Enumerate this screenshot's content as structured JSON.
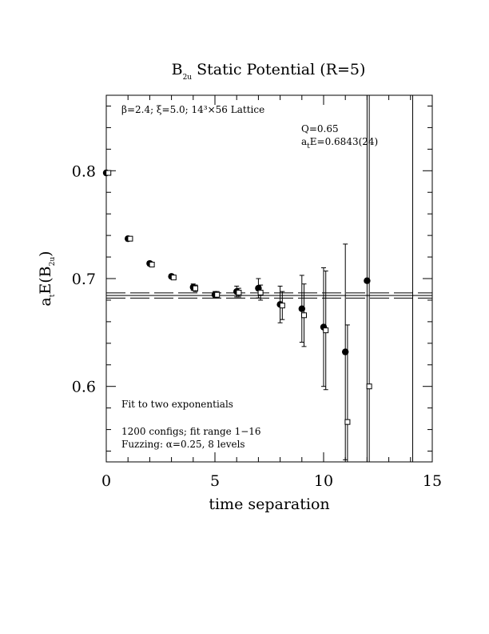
{
  "chart_data": {
    "type": "scatter",
    "title": "B",
    "title_sub": "2u",
    "title_rest": " Static Potential (R=5)",
    "xlabel": "time separation",
    "ylabel": {
      "a": "a",
      "a_sub": "t",
      "E": "E(B",
      "E_sub": "2u",
      "close": ")"
    },
    "xlim": [
      0,
      15
    ],
    "ylim": [
      0.53,
      0.87
    ],
    "x_ticks": [
      0,
      5,
      10,
      15
    ],
    "x_tick_labels": [
      "0",
      "5",
      "10",
      "15"
    ],
    "y_ticks": [
      0.6,
      0.7,
      0.8
    ],
    "y_tick_labels": [
      "0.6",
      "0.7",
      "0.8"
    ],
    "grid": false,
    "annotations": {
      "lattice": "β=2.4; ξ=5.0; 14³×56 Lattice",
      "q": "Q=0.65",
      "fit_a": "a",
      "fit_sub": "t",
      "fit_rest": "E=0.6843(24)",
      "fit_type": "Fit to two exponentials",
      "configs": "1200 configs; fit range 1−16",
      "fuzzing": "Fuzzing: α=0.25, 8 levels"
    },
    "fit": {
      "value": 0.6843,
      "error": 0.0024,
      "x_range": [
        0,
        15
      ]
    },
    "series": [
      {
        "marker": "filled-circle",
        "x": [
          0,
          1,
          2,
          3,
          4,
          5,
          6,
          7,
          8,
          9,
          10,
          11,
          12
        ],
        "y": [
          0.798,
          0.737,
          0.714,
          0.702,
          0.692,
          0.685,
          0.688,
          0.691,
          0.676,
          0.672,
          0.655,
          0.632,
          0.698
        ],
        "err": [
          0.002,
          0.002,
          0.002,
          0.002,
          0.003,
          0.003,
          0.005,
          0.009,
          0.017,
          0.031,
          0.055,
          0.1,
          0.23
        ]
      },
      {
        "marker": "open-square",
        "x": [
          0.1,
          1.1,
          2.1,
          3.1,
          4.1,
          5.1,
          6.1,
          7.1,
          8.1,
          9.1,
          10.1,
          11.1,
          12.1,
          14.1
        ],
        "y": [
          0.798,
          0.737,
          0.713,
          0.701,
          0.691,
          0.685,
          0.687,
          0.687,
          0.675,
          0.666,
          0.652,
          0.567,
          0.6,
          0.5
        ],
        "err": [
          0.002,
          0.002,
          0.002,
          0.002,
          0.003,
          0.003,
          0.004,
          0.007,
          0.013,
          0.029,
          0.055,
          0.09,
          0.36,
          0.5
        ]
      }
    ]
  }
}
